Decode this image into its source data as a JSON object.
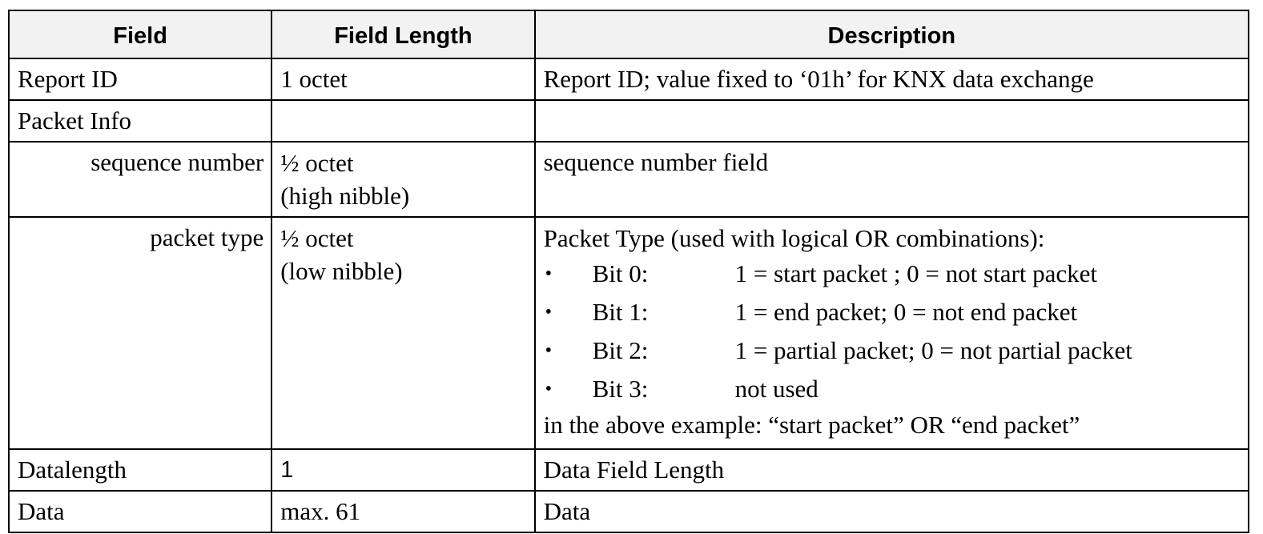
{
  "headers": [
    "Field",
    "Field Length",
    "Description"
  ],
  "rows": {
    "report_id": {
      "field": "Report ID",
      "length": "1 octet",
      "description": "Report ID; value fixed to ‘01h’ for KNX data exchange"
    },
    "packet_info": {
      "field": "Packet Info",
      "length": "",
      "description": ""
    },
    "sequence_number": {
      "field": "sequence number",
      "length_lines": [
        "½ octet",
        "(high nibble)"
      ],
      "description": "sequence number field"
    },
    "packet_type": {
      "field": "packet type",
      "length_lines": [
        "½ octet",
        "(low nibble)"
      ],
      "intro": "Packet Type (used with logical OR combinations):",
      "bullet_glyph": "•",
      "bits": [
        {
          "bit": "Bit 0:",
          "meaning": "1 = start packet ; 0 = not start packet"
        },
        {
          "bit": "Bit 1:",
          "meaning": "1 = end packet; 0 = not end packet"
        },
        {
          "bit": "Bit 2:",
          "meaning": "1 = partial packet; 0 = not partial packet"
        },
        {
          "bit": "Bit 3:",
          "meaning": "not used"
        }
      ],
      "example": "in the above example: “start packet” OR “end packet”"
    },
    "datalength": {
      "field": "Datalength",
      "length": "1",
      "description": "Data Field Length"
    },
    "data": {
      "field": "Data",
      "length": "max. 61",
      "description": "Data"
    }
  }
}
